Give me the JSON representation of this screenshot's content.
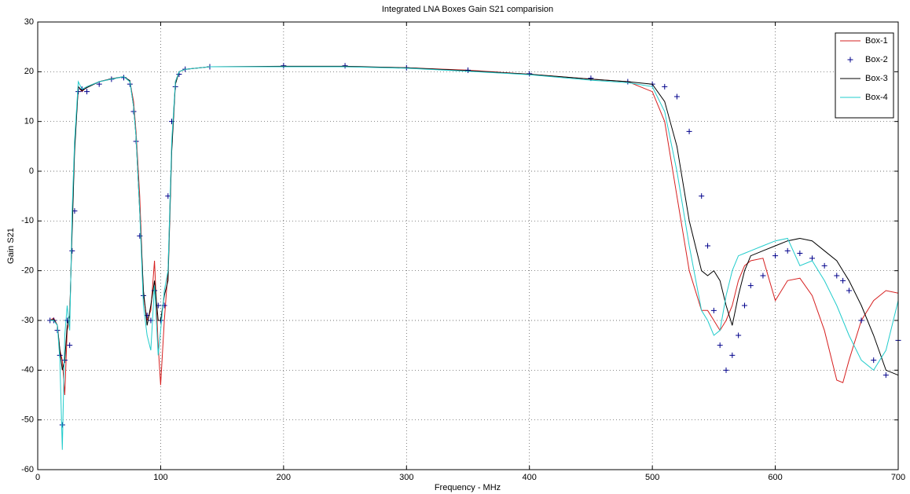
{
  "chart_data": {
    "type": "line",
    "title": "Integrated LNA Boxes Gain S21 comparision",
    "x_label": "Frequency - MHz",
    "y_label": "Gain S21",
    "xlim": [
      0,
      700
    ],
    "ylim": [
      -60,
      30
    ],
    "xticks": [
      0,
      100,
      200,
      300,
      400,
      500,
      600,
      700
    ],
    "yticks": [
      -60,
      -50,
      -40,
      -30,
      -20,
      -10,
      0,
      10,
      20,
      30
    ],
    "grid": true,
    "legend": "northeast",
    "x": [
      10,
      13,
      16,
      18,
      20,
      22,
      24,
      26,
      28,
      30,
      33,
      36,
      40,
      50,
      60,
      70,
      75,
      78,
      80,
      83,
      86,
      89,
      92,
      95,
      98,
      100,
      103,
      106,
      109,
      112,
      115,
      120,
      140,
      200,
      250,
      300,
      350,
      400,
      450,
      480,
      500,
      510,
      520,
      530,
      540,
      545,
      550,
      555,
      560,
      565,
      570,
      575,
      580,
      590,
      600,
      610,
      620,
      630,
      640,
      650,
      655,
      660,
      670,
      680,
      690,
      700
    ],
    "series": [
      {
        "name": "Box-1",
        "color": "#d62020",
        "values": [
          -30,
          -29.5,
          -31,
          -36,
          -38,
          -45,
          -32,
          -30,
          -10,
          5,
          17,
          16,
          17,
          18,
          18.5,
          19,
          18,
          14,
          8,
          -5,
          -25,
          -30,
          -28,
          -18,
          -35,
          -43,
          -30,
          -20,
          5,
          18,
          20,
          20.5,
          21,
          21,
          21,
          20.8,
          20.3,
          19.5,
          18.5,
          18,
          16,
          10,
          -5,
          -20,
          -28,
          -28,
          -30,
          -32,
          -30,
          -27,
          -22,
          -19,
          -18,
          -17.5,
          -26,
          -22,
          -21.5,
          -25,
          -32,
          -42,
          -42.5,
          -38,
          -30,
          -26,
          -24,
          -24.5
        ]
      },
      {
        "name": "Box-2",
        "color": "#00008b",
        "marker": "+",
        "values": [
          -30,
          -30,
          -32,
          -37,
          -51,
          -38,
          -30,
          -35,
          -16,
          -8,
          16,
          16.5,
          16,
          17.5,
          18.5,
          18.8,
          17.5,
          12,
          6,
          -13,
          -25,
          -29,
          -30,
          -24,
          -27,
          -30,
          -27,
          -5,
          10,
          17,
          19.5,
          20.5,
          21,
          21.2,
          21.2,
          20.8,
          20.3,
          19.6,
          18.7,
          18,
          17.5,
          17,
          15,
          8,
          -5,
          -15,
          -28,
          -35,
          -40,
          -37,
          -33,
          -27,
          -23,
          -21,
          -17,
          -16,
          -16.5,
          -17.5,
          -19,
          -21,
          -22,
          -24,
          -30,
          -38,
          -41,
          -34
        ]
      },
      {
        "name": "Box-3",
        "color": "#000000",
        "values": [
          -30,
          -29.8,
          -31,
          -36,
          -40,
          -38,
          -31,
          -29,
          -12,
          4,
          17,
          16.2,
          16.8,
          18,
          18.6,
          19,
          18.2,
          13,
          7,
          -8,
          -24,
          -31,
          -27,
          -22,
          -30,
          -30,
          -25,
          -22,
          4,
          17.5,
          20,
          20.5,
          21,
          21.1,
          21.1,
          20.8,
          20.2,
          19.5,
          18.5,
          18,
          17.5,
          14,
          5,
          -10,
          -20,
          -21,
          -20,
          -22,
          -27,
          -31,
          -25,
          -20,
          -17,
          -16,
          -15,
          -14,
          -13.5,
          -14,
          -16,
          -18,
          -20,
          -22,
          -27,
          -33,
          -40,
          -41
        ]
      },
      {
        "name": "Box-4",
        "color": "#22cccc",
        "values": [
          -30,
          -30,
          -31,
          -38,
          -56,
          -33,
          -27,
          -32,
          -8,
          6,
          18,
          16.5,
          17,
          18,
          18.5,
          19,
          18,
          13,
          7,
          -8,
          -27,
          -33,
          -36,
          -23,
          -37,
          -32,
          -24,
          -20,
          6,
          18,
          20,
          20.5,
          21,
          21,
          21,
          20.7,
          20.1,
          19.4,
          18.3,
          17.8,
          17,
          12,
          0,
          -15,
          -28,
          -30,
          -33,
          -32,
          -25,
          -20,
          -17,
          -16.5,
          -16,
          -15,
          -14,
          -13.5,
          -19,
          -18,
          -22,
          -27,
          -30,
          -33,
          -38,
          -40,
          -36,
          -26
        ]
      }
    ]
  }
}
